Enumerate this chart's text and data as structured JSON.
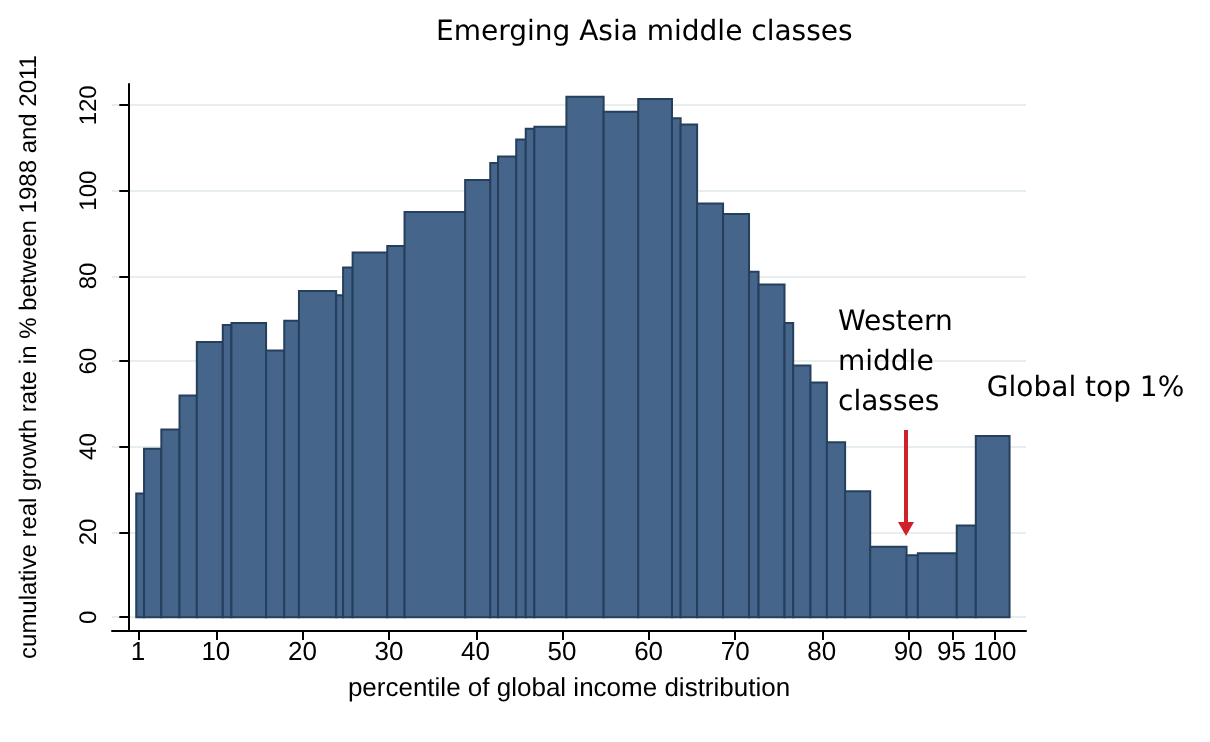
{
  "chart_data": {
    "type": "histogram",
    "title": "Emerging Asia middle classes",
    "xlabel": "percentile of global income distribution",
    "ylabel": "cumulative real growth rate in % between 1988 and 2011",
    "bins": [
      0.8,
      1.7,
      3.7,
      5.8,
      7.8,
      10.8,
      11.8,
      15.8,
      17.9,
      19.6,
      23.9,
      24.7,
      25.8,
      29.8,
      31.8,
      38.8,
      41.7,
      42.6,
      44.7,
      45.8,
      46.8,
      50.5,
      54.8,
      58.8,
      62.7,
      63.7,
      65.6,
      68.6,
      71.6,
      72.7,
      75.7,
      76.7,
      78.7,
      80.6,
      82.7,
      85.6,
      89.8,
      91.1,
      95.6,
      97.8,
      101.7
    ],
    "values": [
      29,
      39.5,
      44,
      52,
      64.5,
      68.5,
      69,
      62.5,
      69.5,
      76.5,
      75.5,
      82,
      85.5,
      87,
      95,
      102.5,
      106.5,
      108,
      112,
      114.5,
      115,
      122,
      118.5,
      121.5,
      117,
      115.5,
      97,
      94.5,
      81,
      78,
      69,
      59,
      55,
      41,
      29.5,
      16.5,
      14.5,
      15,
      21.5,
      42.5
    ],
    "color": "#45658a",
    "xlim": [
      -2,
      103.6
    ],
    "xticks": [
      1,
      10,
      20,
      30,
      40,
      50,
      60,
      70,
      80,
      90,
      95,
      100
    ],
    "ylim": [
      -3,
      125
    ],
    "yticks": [
      0,
      20,
      40,
      60,
      80,
      100,
      120
    ],
    "grid": "y",
    "annotations": [
      "Western middle classes",
      {
        "text": "Global top 1%",
        "x": 100,
        "y": 43
      }
    ]
  }
}
